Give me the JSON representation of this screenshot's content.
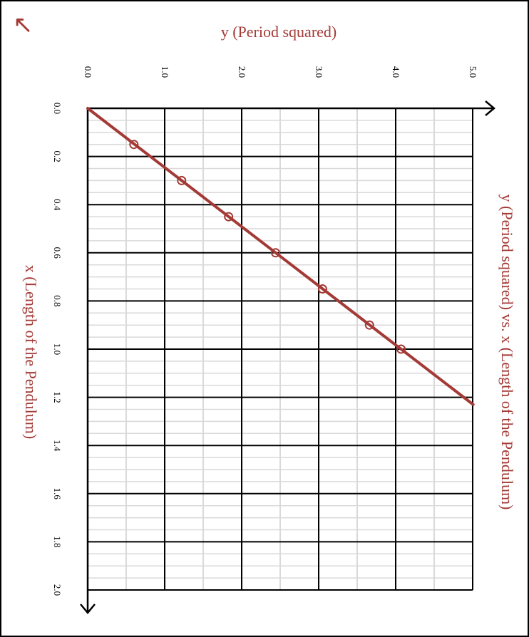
{
  "colors": {
    "accent": "#a33a36",
    "grid_minor": "#d9d9d9",
    "grid_major": "#000000",
    "background": "#ffffff"
  },
  "back_icon": "arrow-up-left-icon",
  "back_glyph": "↖",
  "chart_data": {
    "type": "line",
    "orientation": "rotated 90° clockwise",
    "title": "y (Period squared) vs. x (Length of the Pendulum)",
    "xlabel": "x (Length of the Pendulum)",
    "ylabel": "y (Period squared)",
    "xlim": [
      0,
      2.0
    ],
    "ylim": [
      0,
      5.0
    ],
    "x_ticks": [
      "0.0",
      "0.2",
      "0.4",
      "0.6",
      "0.8",
      "1.0",
      "1.2",
      "1.4",
      "1.6",
      "1.8",
      "2.0"
    ],
    "y_ticks": [
      "0.0",
      "1.0",
      "2.0",
      "3.0",
      "4.0",
      "5.0"
    ],
    "grid": true,
    "series": [
      {
        "points": [
          {
            "x": 0.15,
            "y": 0.6
          },
          {
            "x": 0.3,
            "y": 1.22
          },
          {
            "x": 0.45,
            "y": 1.83
          },
          {
            "x": 0.6,
            "y": 2.44
          },
          {
            "x": 0.75,
            "y": 3.05
          },
          {
            "x": 0.9,
            "y": 3.66
          },
          {
            "x": 1.0,
            "y": 4.07
          }
        ],
        "fit_line": {
          "slope": 4.07,
          "intercept": 0.0,
          "x_start": 0.0,
          "x_end": 1.23
        }
      }
    ]
  }
}
